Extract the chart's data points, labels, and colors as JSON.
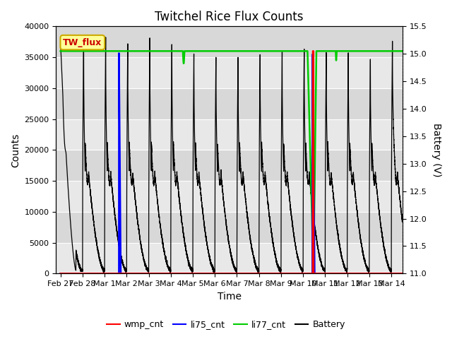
{
  "title": "Twitchel Rice Flux Counts",
  "xlabel": "Time",
  "ylabel_left": "Counts",
  "ylabel_right": "Battery (V)",
  "xlim_days": [
    -0.2,
    15.5
  ],
  "ylim_left": [
    0,
    40000
  ],
  "ylim_right": [
    11.0,
    15.5
  ],
  "background_color": "#e8e8e8",
  "fig_background": "#ffffff",
  "tw_flux_box_color": "#ffff99",
  "tw_flux_text_color": "#cc0000",
  "tw_flux_border_color": "#ccaa00",
  "x_tick_labels": [
    "Feb 27",
    "Feb 28",
    "Mar 1",
    "Mar 2",
    "Mar 3",
    "Mar 4",
    "Mar 5",
    "Mar 6",
    "Mar 7",
    "Mar 8",
    "Mar 9",
    "Mar 10",
    "Mar 11",
    "Mar 12",
    "Mar 13",
    "Mar 14"
  ],
  "x_tick_positions": [
    0,
    1,
    2,
    3,
    4,
    5,
    6,
    7,
    8,
    9,
    10,
    11,
    12,
    13,
    14,
    15
  ],
  "wmp_cnt_color": "#ff0000",
  "li75_cnt_color": "#0000ff",
  "li77_cnt_color": "#00cc00",
  "battery_color": "#000000",
  "yticks_left": [
    0,
    5000,
    10000,
    15000,
    20000,
    25000,
    30000,
    35000,
    40000
  ],
  "yticks_right": [
    11.0,
    11.5,
    12.0,
    12.5,
    13.0,
    13.5,
    14.0,
    14.5,
    15.0,
    15.5
  ]
}
